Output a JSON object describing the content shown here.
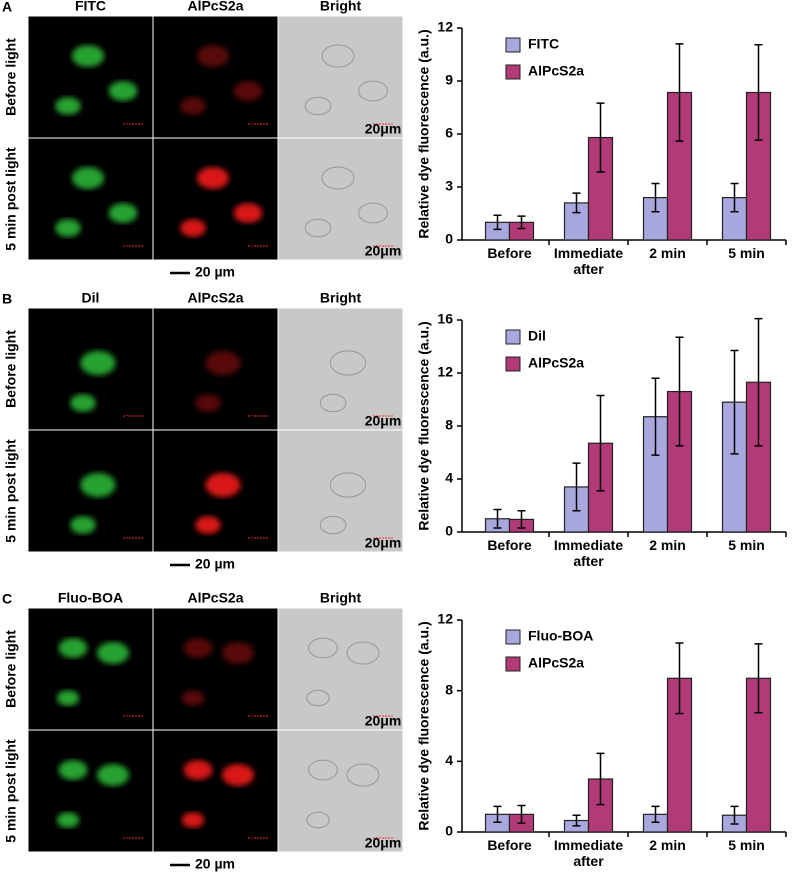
{
  "chart_data": [
    {
      "type": "bar",
      "panel": "A",
      "image_columns": [
        "FITC",
        "AlPcS2a",
        "Bright"
      ],
      "image_rows": [
        "Before light",
        "5 min post light"
      ],
      "image_scale": "20μm",
      "scale_bar": "20 µm",
      "y_label": "Relative dye fluorescence (a.u.)",
      "categories": [
        "Before",
        "Immediate after",
        "2 min",
        "5 min"
      ],
      "series": [
        {
          "name": "FITC",
          "color": "#a8a8de",
          "values": [
            1.0,
            2.1,
            2.4,
            2.4
          ],
          "errors": [
            0.4,
            0.55,
            0.8,
            0.8
          ]
        },
        {
          "name": "AlPcS2a",
          "color": "#b23a78",
          "values": [
            1.0,
            5.8,
            8.35,
            8.35
          ],
          "errors": [
            0.35,
            1.95,
            2.75,
            2.7
          ]
        }
      ],
      "ylim": [
        0,
        12
      ],
      "yticks": [
        0,
        3,
        6,
        9,
        12
      ],
      "legend": "upper left"
    },
    {
      "type": "bar",
      "panel": "B",
      "image_columns": [
        "Dil",
        "AlPcS2a",
        "Bright"
      ],
      "image_rows": [
        "Before light",
        "5 min post light"
      ],
      "image_scale": "20μm",
      "scale_bar": "20 µm",
      "y_label": "Relative dye fluorescence (a.u.)",
      "categories": [
        "Before",
        "Immediate after",
        "2 min",
        "5 min"
      ],
      "series": [
        {
          "name": "Dil",
          "color": "#a8a8de",
          "values": [
            1.0,
            3.4,
            8.7,
            9.8
          ],
          "errors": [
            0.7,
            1.8,
            2.9,
            3.9
          ]
        },
        {
          "name": "AlPcS2a",
          "color": "#b23a78",
          "values": [
            0.95,
            6.7,
            10.6,
            11.3
          ],
          "errors": [
            0.65,
            3.6,
            4.1,
            4.8
          ]
        }
      ],
      "ylim": [
        0,
        16
      ],
      "yticks": [
        0,
        4,
        8,
        12,
        16
      ],
      "legend": "upper left"
    },
    {
      "type": "bar",
      "panel": "C",
      "image_columns": [
        "Fluo-BOA",
        "AlPcS2a",
        "Bright"
      ],
      "image_rows": [
        "Before light",
        "5 min post light"
      ],
      "image_scale": "20μm",
      "scale_bar": "20 µm",
      "y_label": "Relative dye fluorescence (a.u.)",
      "categories": [
        "Before",
        "Immediate after",
        "2 min",
        "5 min"
      ],
      "series": [
        {
          "name": "Fluo-BOA",
          "color": "#a8a8de",
          "values": [
            1.0,
            0.65,
            1.0,
            0.95
          ],
          "errors": [
            0.45,
            0.3,
            0.45,
            0.5
          ]
        },
        {
          "name": "AlPcS2a",
          "color": "#b23a78",
          "values": [
            1.0,
            3.0,
            8.7,
            8.7
          ],
          "errors": [
            0.5,
            1.45,
            2.0,
            1.95
          ]
        }
      ],
      "ylim": [
        0,
        12
      ],
      "yticks": [
        0,
        4,
        8,
        12
      ],
      "legend": "upper left"
    }
  ]
}
